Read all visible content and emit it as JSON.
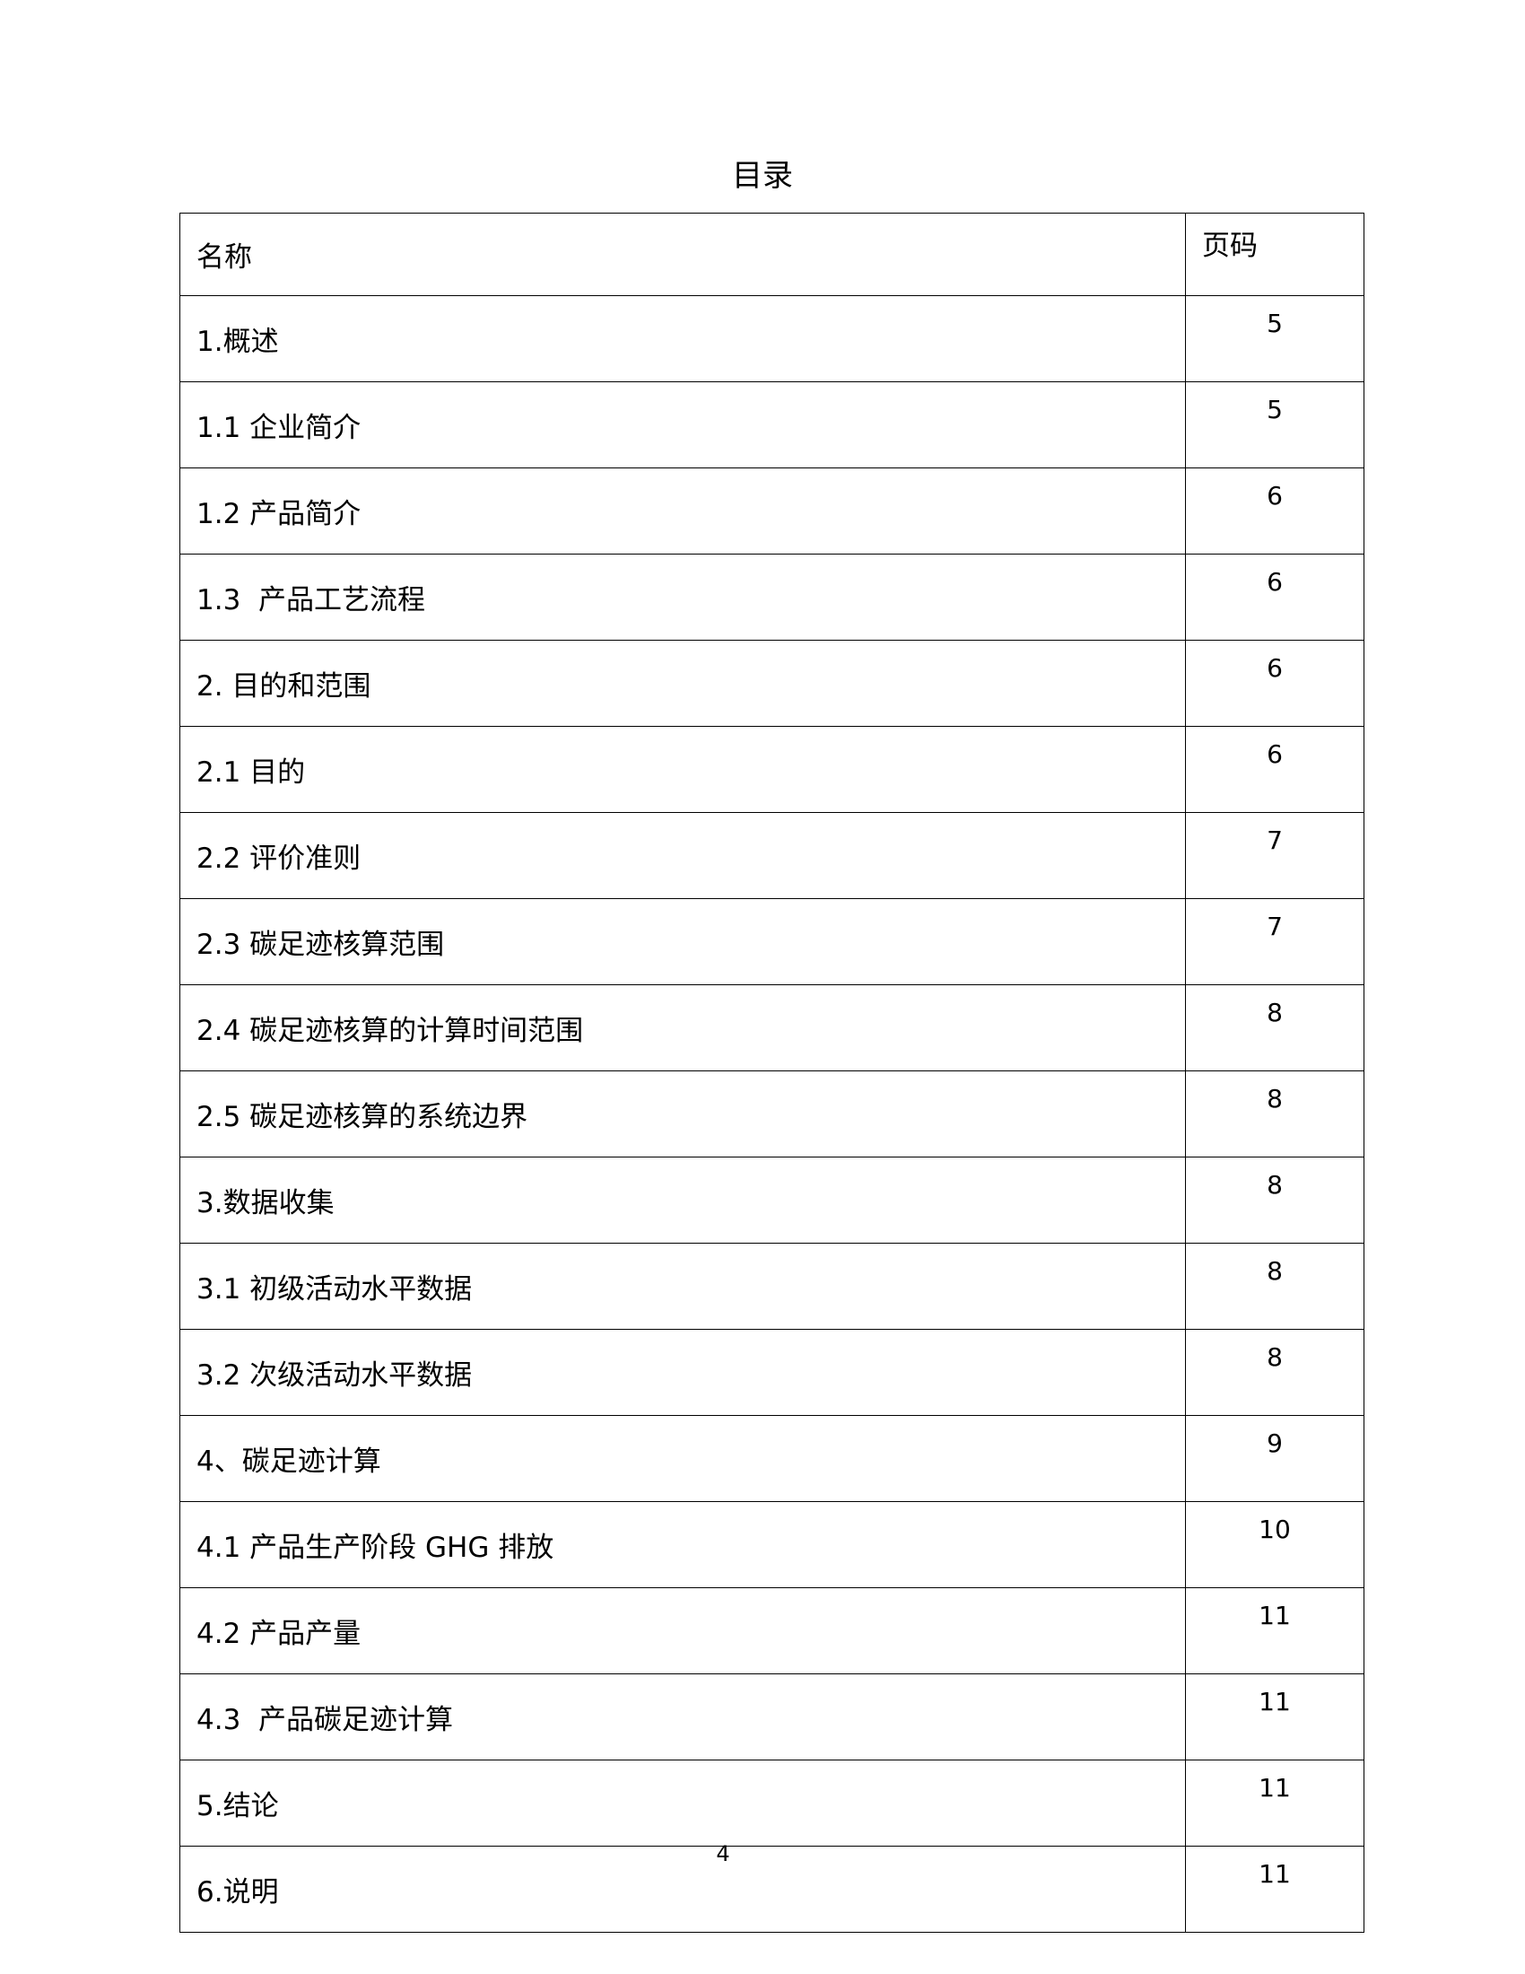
{
  "title": "目录",
  "header": {
    "name": "名称",
    "page": "页码"
  },
  "rows": [
    {
      "name": "1.概述",
      "page": "5"
    },
    {
      "name": "1.1 企业简介",
      "page": "5"
    },
    {
      "name": "1.2 产品简介",
      "page": "6"
    },
    {
      "name": "1.3  产品工艺流程",
      "page": "6"
    },
    {
      "name": "2. 目的和范围",
      "page": "6"
    },
    {
      "name": "2.1 目的",
      "page": "6"
    },
    {
      "name": "2.2 评价准则",
      "page": "7"
    },
    {
      "name": "2.3 碳足迹核算范围",
      "page": "7"
    },
    {
      "name": "2.4 碳足迹核算的计算时间范围",
      "page": "8"
    },
    {
      "name": "2.5 碳足迹核算的系统边界",
      "page": "8"
    },
    {
      "name": "3.数据收集",
      "page": "8"
    },
    {
      "name": "3.1 初级活动水平数据",
      "page": "8"
    },
    {
      "name": "3.2 次级活动水平数据",
      "page": "8"
    },
    {
      "name": "4、碳足迹计算",
      "page": "9"
    },
    {
      "name": "4.1 产品生产阶段 GHG 排放",
      "page": "10"
    },
    {
      "name": "4.2 产品产量",
      "page": "11"
    },
    {
      "name": "4.3  产品碳足迹计算",
      "page": "11"
    },
    {
      "name": "5.结论",
      "page": "11"
    },
    {
      "name": "6.说明",
      "page": "11"
    }
  ],
  "page_number": "4"
}
